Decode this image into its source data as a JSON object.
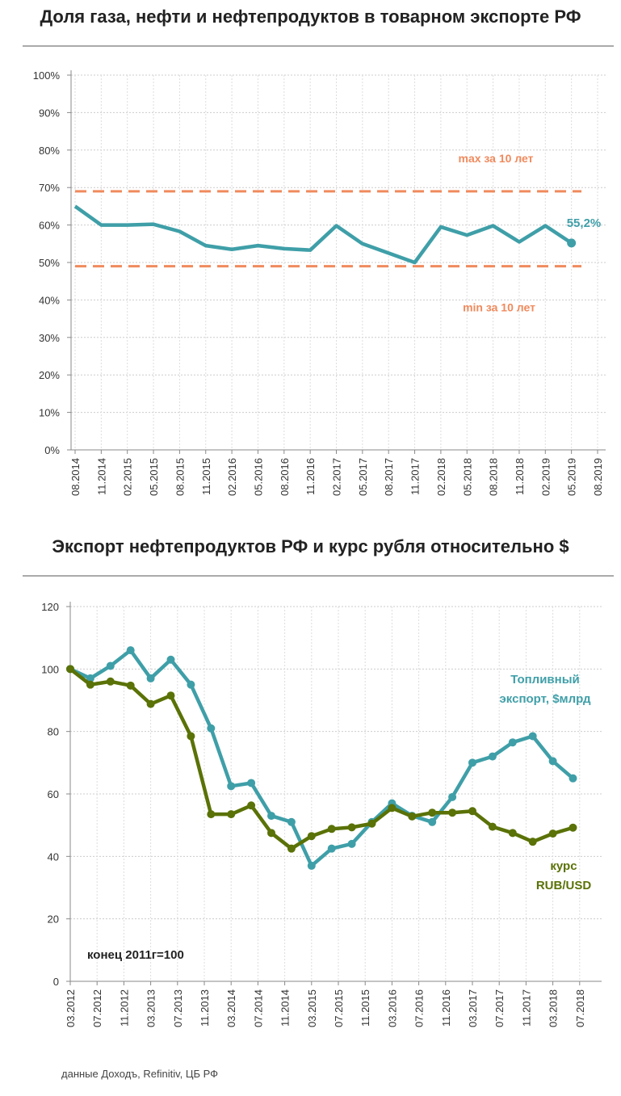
{
  "chart_data": [
    {
      "type": "line",
      "title": "Доля газа, нефти и нефтепродуктов в товарном экспорте РФ",
      "x_labels": [
        "08.2014",
        "11.2014",
        "02.2015",
        "05.2015",
        "08.2015",
        "11.2015",
        "02.2016",
        "05.2016",
        "08.2016",
        "11.2016",
        "02.2017",
        "05.2017",
        "08.2017",
        "11.2017",
        "02.2018",
        "05.2018",
        "08.2018",
        "11.2018",
        "02.2019",
        "05.2019",
        "08.2019"
      ],
      "y_ticks": [
        "0%",
        "10%",
        "20%",
        "30%",
        "40%",
        "50%",
        "60%",
        "70%",
        "80%",
        "90%",
        "100%"
      ],
      "ylim": [
        0,
        100
      ],
      "series": [
        {
          "name": "Доля",
          "color": "#3f9fa8",
          "values": [
            65,
            60,
            60,
            60.2,
            58.3,
            54.5,
            53.5,
            54.5,
            53.7,
            53.3,
            59.8,
            55,
            52.5,
            50,
            59.5,
            57.3,
            59.8,
            55.5,
            59.8,
            55.2
          ]
        }
      ],
      "reference_lines": [
        {
          "label": "max за 10 лет",
          "value": 69,
          "color": "#f08a5d"
        },
        {
          "label": "min за 10 лет",
          "value": 49,
          "color": "#f08a5d"
        }
      ],
      "end_label": "55,2%"
    },
    {
      "type": "line",
      "title": "Экспорт нефтепродуктов РФ и курс рубля относительно $",
      "x_labels": [
        "03.2012",
        "07.2012",
        "11.2012",
        "03.2013",
        "07.2013",
        "11.2013",
        "03.2014",
        "07.2014",
        "11.2014",
        "03.2015",
        "07.2015",
        "11.2015",
        "03.2016",
        "07.2016",
        "11.2016",
        "03.2017",
        "07.2017",
        "11.2017",
        "03.2018",
        "07.2018"
      ],
      "y_ticks": [
        "0",
        "20",
        "40",
        "60",
        "80",
        "100",
        "120"
      ],
      "ylim": [
        0,
        120
      ],
      "series": [
        {
          "name": "Топливный экспорт, $млрд",
          "label_lines": [
            "Топливный",
            "экспорт, $млрд"
          ],
          "color": "#3f9fa8",
          "values": [
            100,
            97,
            101,
            106,
            97,
            103,
            95,
            81,
            62.5,
            63.5,
            53,
            51,
            37,
            42.5,
            44,
            51,
            57,
            53,
            51,
            59,
            70,
            72,
            76.5,
            78.5,
            70.5,
            65
          ]
        },
        {
          "name": "курс RUB/USD",
          "label_lines": [
            "курс",
            "RUB/USD"
          ],
          "color": "#5a7207",
          "values": [
            100,
            95,
            96,
            94.7,
            88.8,
            91.5,
            78.5,
            53.5,
            53.5,
            56.3,
            47.5,
            42.5,
            46.5,
            48.8,
            49.3,
            50.5,
            55.5,
            52.8,
            54,
            54,
            54.5,
            49.5,
            47.5,
            44.7,
            47.3,
            49.2
          ]
        }
      ],
      "annotation": "конец 2011г=100"
    }
  ],
  "source": "данные Доходъ, Refinitiv, ЦБ РФ"
}
